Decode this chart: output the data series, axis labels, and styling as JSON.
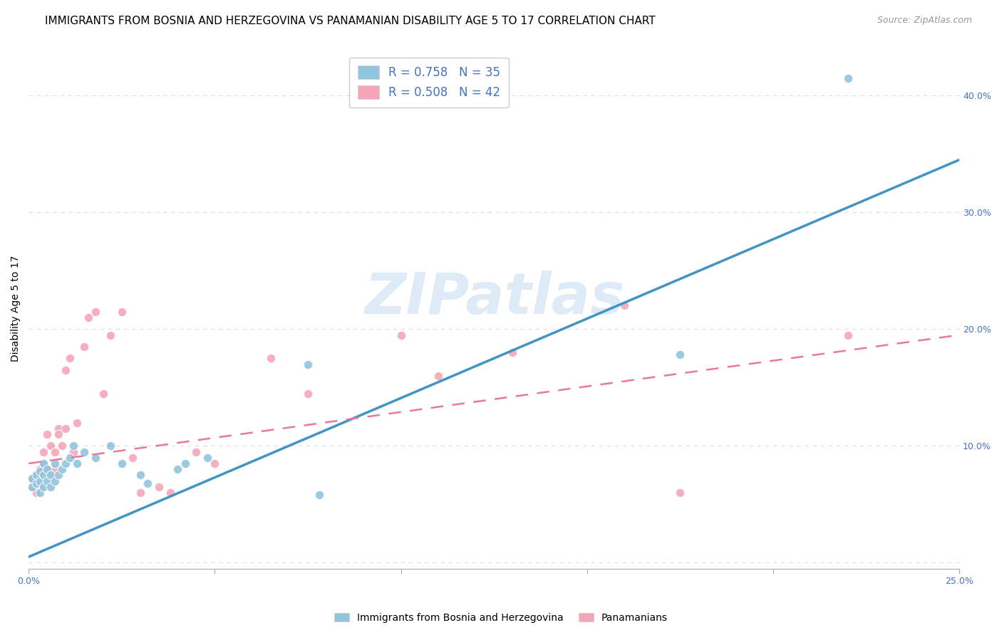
{
  "title": "IMMIGRANTS FROM BOSNIA AND HERZEGOVINA VS PANAMANIAN DISABILITY AGE 5 TO 17 CORRELATION CHART",
  "source": "Source: ZipAtlas.com",
  "ylabel": "Disability Age 5 to 17",
  "xlim": [
    0.0,
    0.25
  ],
  "ylim": [
    -0.005,
    0.44
  ],
  "x_ticks": [
    0.0,
    0.05,
    0.1,
    0.15,
    0.2,
    0.25
  ],
  "x_tick_labels": [
    "0.0%",
    "",
    "",
    "",
    "",
    "25.0%"
  ],
  "y_ticks_right": [
    0.0,
    0.1,
    0.2,
    0.3,
    0.4
  ],
  "y_tick_labels_right": [
    "",
    "10.0%",
    "20.0%",
    "30.0%",
    "40.0%"
  ],
  "blue_color": "#92c5de",
  "pink_color": "#f4a6b8",
  "blue_line_color": "#4393c3",
  "pink_line_color": "#e8799a",
  "r_blue": 0.758,
  "n_blue": 35,
  "r_pink": 0.508,
  "n_pink": 42,
  "legend_label_blue": "Immigrants from Bosnia and Herzegovina",
  "legend_label_pink": "Panamanians",
  "watermark": "ZIPatlas",
  "blue_scatter_x": [
    0.001,
    0.001,
    0.002,
    0.002,
    0.003,
    0.003,
    0.003,
    0.004,
    0.004,
    0.004,
    0.005,
    0.005,
    0.006,
    0.006,
    0.007,
    0.007,
    0.008,
    0.009,
    0.01,
    0.011,
    0.012,
    0.013,
    0.015,
    0.018,
    0.022,
    0.025,
    0.03,
    0.032,
    0.04,
    0.042,
    0.048,
    0.075,
    0.078,
    0.175,
    0.22
  ],
  "blue_scatter_y": [
    0.065,
    0.072,
    0.068,
    0.075,
    0.06,
    0.07,
    0.078,
    0.065,
    0.075,
    0.085,
    0.07,
    0.08,
    0.065,
    0.075,
    0.07,
    0.085,
    0.075,
    0.08,
    0.085,
    0.09,
    0.1,
    0.085,
    0.095,
    0.09,
    0.1,
    0.085,
    0.075,
    0.068,
    0.08,
    0.085,
    0.09,
    0.17,
    0.058,
    0.178,
    0.415
  ],
  "pink_scatter_x": [
    0.001,
    0.001,
    0.002,
    0.002,
    0.003,
    0.003,
    0.004,
    0.004,
    0.005,
    0.005,
    0.006,
    0.006,
    0.007,
    0.007,
    0.008,
    0.008,
    0.009,
    0.01,
    0.01,
    0.011,
    0.012,
    0.013,
    0.015,
    0.016,
    0.018,
    0.02,
    0.022,
    0.025,
    0.028,
    0.03,
    0.035,
    0.038,
    0.045,
    0.05,
    0.065,
    0.075,
    0.1,
    0.11,
    0.13,
    0.16,
    0.175,
    0.22
  ],
  "pink_scatter_y": [
    0.065,
    0.072,
    0.06,
    0.075,
    0.065,
    0.08,
    0.085,
    0.095,
    0.08,
    0.11,
    0.075,
    0.1,
    0.08,
    0.095,
    0.115,
    0.11,
    0.1,
    0.165,
    0.115,
    0.175,
    0.095,
    0.12,
    0.185,
    0.21,
    0.215,
    0.145,
    0.195,
    0.215,
    0.09,
    0.06,
    0.065,
    0.06,
    0.095,
    0.085,
    0.175,
    0.145,
    0.195,
    0.16,
    0.18,
    0.22,
    0.06,
    0.195
  ],
  "blue_line_x0": 0.0,
  "blue_line_x1": 0.25,
  "blue_line_y0": 0.005,
  "blue_line_y1": 0.345,
  "pink_line_x0": 0.0,
  "pink_line_x1": 0.25,
  "pink_line_y0": 0.085,
  "pink_line_y1": 0.195,
  "background_color": "#ffffff",
  "grid_color": "#dddddd",
  "title_fontsize": 11,
  "axis_label_fontsize": 10,
  "tick_fontsize": 9,
  "marker_size": 80
}
